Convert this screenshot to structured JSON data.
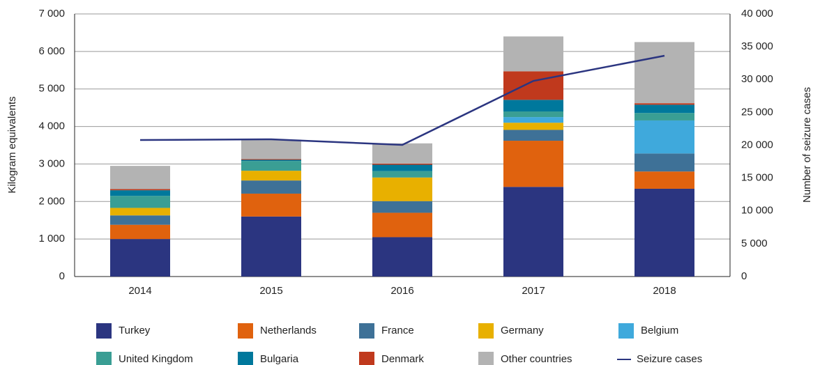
{
  "chart_data": {
    "type": "bar",
    "stacked": true,
    "categories": [
      "2014",
      "2015",
      "2016",
      "2017",
      "2018"
    ],
    "y_label": "Kilogram equivalents",
    "y2_label": "Number of seizure cases",
    "ylim": [
      0,
      7000
    ],
    "yticks": [
      0,
      {
        "value": 1000,
        "label": "1 000"
      },
      {
        "value": 2000,
        "label": "2 000"
      },
      {
        "value": 3000,
        "label": "3 000"
      },
      {
        "value": 4000,
        "label": "4 000"
      },
      {
        "value": 5000,
        "label": "5 000"
      },
      {
        "value": 6000,
        "label": "6 000"
      },
      {
        "value": 7000,
        "label": "7 000"
      }
    ],
    "y2lim": [
      0,
      40000
    ],
    "y2ticks": [
      0,
      {
        "value": 5000,
        "label": "5 000"
      },
      {
        "value": 10000,
        "label": "10 000"
      },
      {
        "value": 15000,
        "label": "15 000"
      },
      {
        "value": 20000,
        "label": "20 000"
      },
      {
        "value": 25000,
        "label": "25 000"
      },
      {
        "value": 30000,
        "label": "30 000"
      },
      {
        "value": 35000,
        "label": "35 000"
      },
      {
        "value": 40000,
        "label": "40 000"
      }
    ],
    "grid": true,
    "series": [
      {
        "name": "Turkey",
        "color": "#2b3580",
        "values": [
          1000,
          1600,
          1050,
          2390,
          2340
        ]
      },
      {
        "name": "Netherlands",
        "color": "#e0620e",
        "values": [
          380,
          610,
          650,
          1230,
          460
        ]
      },
      {
        "name": "France",
        "color": "#3e7197",
        "values": [
          250,
          350,
          310,
          290,
          480
        ]
      },
      {
        "name": "Germany",
        "color": "#e8b000",
        "values": [
          200,
          260,
          630,
          190,
          0
        ]
      },
      {
        "name": "Belgium",
        "color": "#3fa9dc",
        "values": [
          0,
          0,
          0,
          150,
          880
        ]
      },
      {
        "name": "United Kingdom",
        "color": "#3a9e94",
        "values": [
          320,
          260,
          170,
          150,
          200
        ]
      },
      {
        "name": "Bulgaria",
        "color": "#00789c",
        "values": [
          150,
          30,
          170,
          310,
          220
        ]
      },
      {
        "name": "Denmark",
        "color": "#c0391d",
        "values": [
          30,
          20,
          30,
          760,
          40
        ]
      },
      {
        "name": "Other countries",
        "color": "#b3b3b3",
        "values": [
          620,
          520,
          540,
          930,
          1630
        ]
      },
      {
        "name": "Seizure cases",
        "type": "line",
        "axis": "y2",
        "color": "#2b3580",
        "values": [
          20800,
          20900,
          20050,
          29800,
          33630
        ]
      }
    ]
  }
}
